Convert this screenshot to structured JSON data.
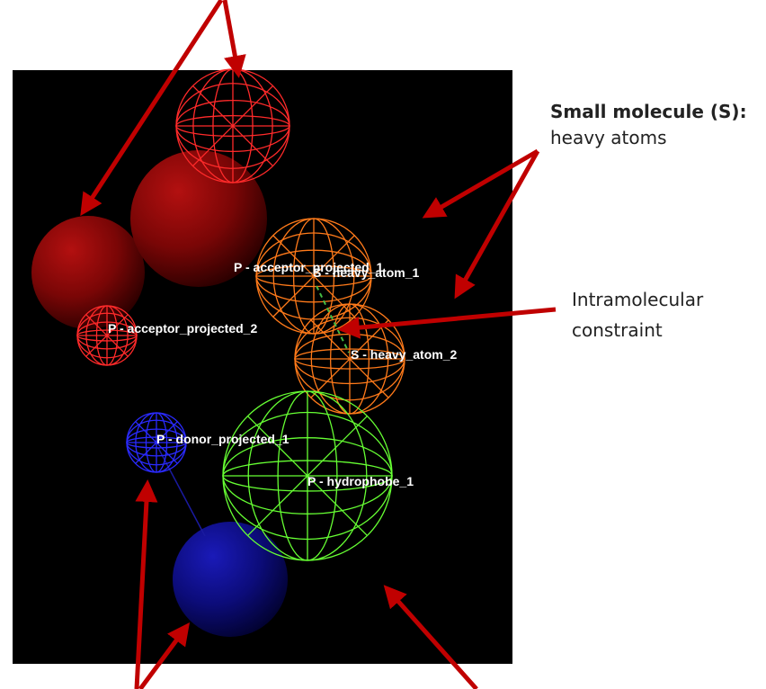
{
  "viewport": {
    "background": "#000000",
    "spheres": [
      {
        "name": "acceptor-projected-1",
        "label": "P - acceptor_projected_1",
        "style": "wire",
        "color": "#ff2a2a"
      },
      {
        "name": "acceptor-2-solid",
        "label": "",
        "style": "solid",
        "color": "#8b0000"
      },
      {
        "name": "acceptor-1-solid",
        "label": "",
        "style": "solid",
        "color": "#8b0000"
      },
      {
        "name": "acceptor-projected-2",
        "label": "P - acceptor_projected_2",
        "style": "wire",
        "color": "#ff2a2a"
      },
      {
        "name": "heavy-atom-1",
        "label": "S - heavy_atom_1",
        "style": "wire",
        "color": "#ff7a1a"
      },
      {
        "name": "heavy-atom-2",
        "label": "S - heavy_atom_2",
        "style": "wire",
        "color": "#ff7a1a"
      },
      {
        "name": "donor-projected-1",
        "label": "P - donor_projected_1",
        "style": "wire",
        "color": "#2a2aff"
      },
      {
        "name": "donor-solid",
        "label": "",
        "style": "solid",
        "color": "#0a0a8a"
      },
      {
        "name": "hydrophobe-1",
        "label": "P - hydrophobe_1",
        "style": "wire",
        "color": "#66ff33"
      }
    ]
  },
  "annotations": {
    "small_molecule_title": "Small molecule (S):",
    "small_molecule_desc": "heavy atoms",
    "intramolecular_line1": "Intramolecular",
    "intramolecular_line2": "constraint"
  },
  "colors": {
    "arrow": "#c00000",
    "constraint": "#44bb44"
  }
}
